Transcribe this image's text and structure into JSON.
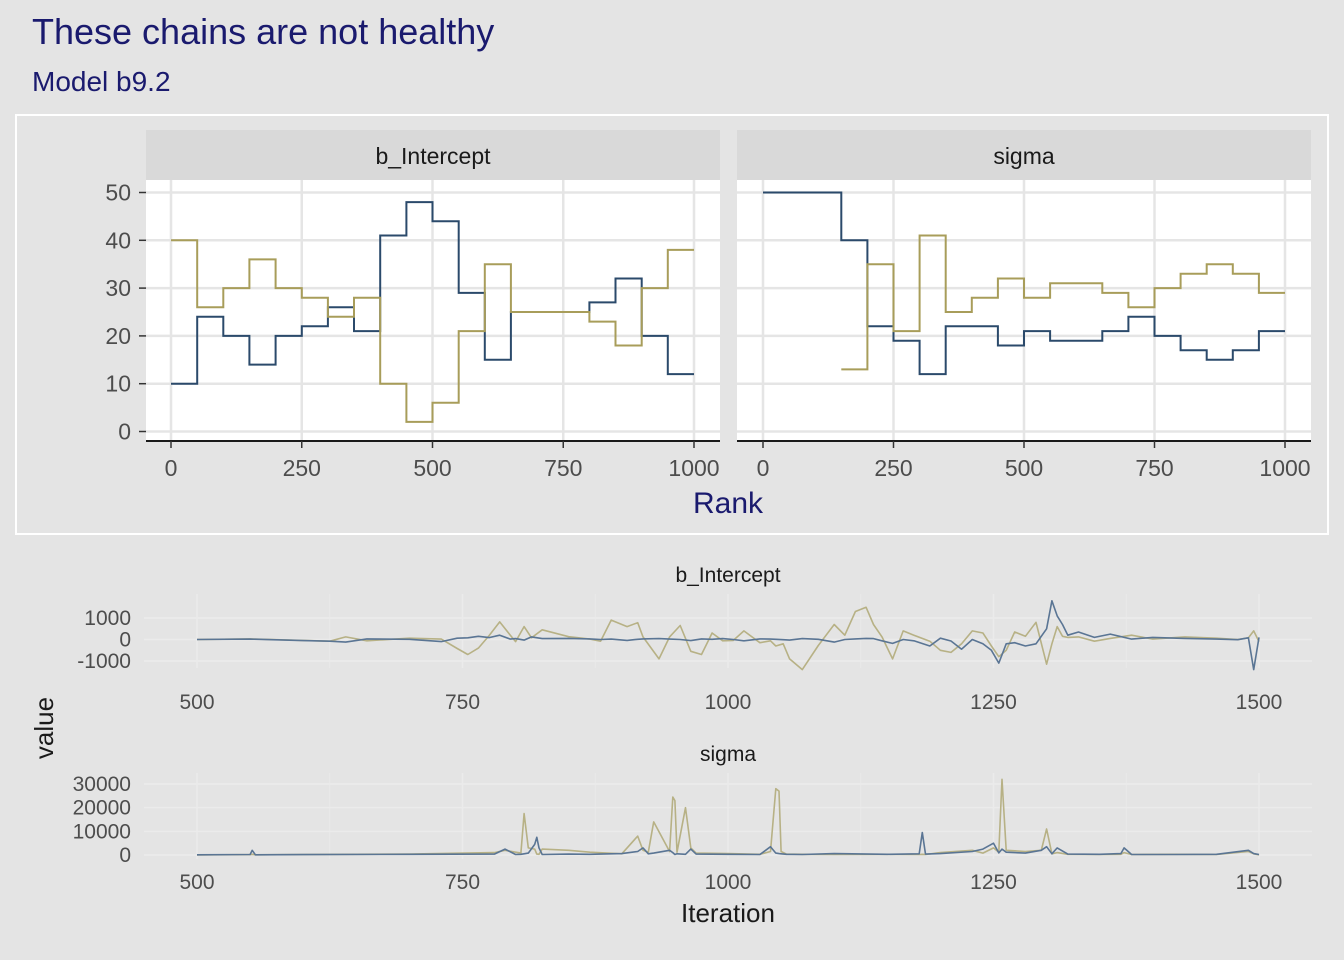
{
  "title": "These chains are not healthy",
  "subtitle": "Model b9.2",
  "colors": {
    "background": "#e4e4e4",
    "panel": "#ffffff",
    "strip": "#d9d9d9",
    "grid": "#e5e5e5",
    "title": "#1a1a6e",
    "chain1": "#2b4a6b",
    "chain2": "#a89d5a",
    "chain1_trace": "#5a7594",
    "chain2_trace": "#b7b185"
  },
  "chart_data": [
    {
      "type": "line",
      "subtype": "rank-step",
      "xlabel": "Rank",
      "ylabel": "",
      "xlim": [
        0,
        1000
      ],
      "ylim": [
        0,
        50
      ],
      "xticks": [
        "0",
        "250",
        "500",
        "750",
        "1000"
      ],
      "yticks": [
        "0",
        "10",
        "20",
        "30",
        "40",
        "50"
      ],
      "panels": [
        {
          "strip": "b_Intercept",
          "bin_edges": [
            0,
            50,
            100,
            150,
            200,
            250,
            300,
            350,
            400,
            450,
            500,
            550,
            600,
            650,
            700,
            750,
            800,
            850,
            900,
            950,
            1000
          ],
          "series": [
            {
              "values": [
                10,
                24,
                20,
                14,
                20,
                22,
                26,
                21,
                41,
                48,
                44,
                29,
                15,
                25,
                25,
                25,
                27,
                32,
                20,
                12
              ]
            },
            {
              "values": [
                40,
                26,
                30,
                36,
                30,
                28,
                24,
                28,
                10,
                2,
                6,
                21,
                35,
                25,
                25,
                25,
                23,
                18,
                30,
                38
              ]
            }
          ]
        },
        {
          "strip": "sigma",
          "bin_edges": [
            0,
            50,
            100,
            150,
            200,
            250,
            300,
            350,
            400,
            450,
            500,
            550,
            600,
            650,
            700,
            750,
            800,
            850,
            900,
            950,
            1000
          ],
          "series": [
            {
              "values": [
                50,
                50,
                50,
                40,
                22,
                19,
                12,
                22,
                22,
                18,
                21,
                19,
                19,
                21,
                24,
                20,
                17,
                15,
                17,
                21
              ]
            },
            {
              "values": [
                null,
                null,
                null,
                13,
                35,
                21,
                41,
                25,
                28,
                32,
                28,
                31,
                31,
                29,
                26,
                30,
                33,
                35,
                33,
                29
              ]
            }
          ]
        }
      ]
    },
    {
      "type": "line",
      "subtype": "trace",
      "xlabel": "Iteration",
      "ylabel": "value",
      "xticks": [
        "500",
        "750",
        "1000",
        "1250",
        "1500"
      ],
      "panels": [
        {
          "strip": "b_Intercept",
          "yticks": [
            "-1000",
            "0",
            "1000"
          ],
          "ylim": [
            -1600,
            1900
          ],
          "x": [
            500,
            550,
            600,
            625,
            640,
            660,
            700,
            730,
            745,
            755,
            765,
            775,
            785,
            795,
            800,
            808,
            815,
            825,
            850,
            870,
            880,
            890,
            905,
            915,
            920,
            935,
            945,
            955,
            965,
            975,
            985,
            995,
            1005,
            1015,
            1030,
            1040,
            1045,
            1052,
            1058,
            1070,
            1085,
            1100,
            1110,
            1120,
            1130,
            1137,
            1145,
            1155,
            1165,
            1175,
            1190,
            1200,
            1210,
            1220,
            1230,
            1240,
            1248,
            1255,
            1262,
            1270,
            1280,
            1290,
            1300,
            1305,
            1310,
            1315,
            1320,
            1330,
            1345,
            1360,
            1380,
            1400,
            1430,
            1460,
            1480,
            1490,
            1495,
            1500
          ],
          "series": [
            {
              "values": [
                0,
                20,
                -50,
                -80,
                -120,
                30,
                10,
                -100,
                60,
                80,
                150,
                90,
                200,
                20,
                40,
                -30,
                120,
                40,
                50,
                30,
                0,
                20,
                -40,
                10,
                30,
                40,
                20,
                0,
                -50,
                30,
                10,
                40,
                0,
                -60,
                30,
                20,
                10,
                -10,
                -30,
                40,
                10,
                -120,
                0,
                30,
                50,
                40,
                -60,
                -180,
                0,
                -60,
                -300,
                60,
                -70,
                -450,
                0,
                -200,
                -500,
                -1100,
                -200,
                -150,
                -300,
                -200,
                500,
                1800,
                1100,
                700,
                200,
                350,
                100,
                250,
                20,
                100,
                50,
                20,
                -10,
                80,
                -1400,
                100
              ]
            },
            {
              "values": [
                0,
                30,
                -40,
                -80,
                120,
                -60,
                60,
                20,
                -420,
                -700,
                -400,
                180,
                820,
                200,
                -100,
                600,
                80,
                450,
                130,
                20,
                -80,
                900,
                600,
                780,
                120,
                -900,
                120,
                650,
                -550,
                -700,
                300,
                -60,
                -40,
                400,
                -150,
                -60,
                -300,
                -200,
                -900,
                -1400,
                -280,
                700,
                200,
                1300,
                1500,
                700,
                120,
                -900,
                400,
                200,
                -80,
                -500,
                -600,
                -200,
                400,
                300,
                -300,
                -800,
                -500,
                350,
                150,
                800,
                -1150,
                -200,
                600,
                150,
                100,
                120,
                -80,
                50,
                200,
                20,
                120,
                60,
                0,
                80,
                400,
                -100
              ]
            }
          ]
        },
        {
          "strip": "sigma",
          "yticks": [
            "0",
            "10000",
            "20000",
            "30000"
          ],
          "ylim": [
            -1500,
            33000
          ],
          "x": [
            500,
            550,
            552,
            555,
            600,
            700,
            780,
            790,
            800,
            805,
            808,
            812,
            818,
            820,
            822,
            825,
            850,
            870,
            900,
            915,
            920,
            925,
            930,
            945,
            948,
            950,
            952,
            960,
            965,
            970,
            1000,
            1030,
            1040,
            1045,
            1048,
            1050,
            1055,
            1070,
            1100,
            1150,
            1180,
            1183,
            1186,
            1200,
            1230,
            1240,
            1250,
            1255,
            1258,
            1262,
            1280,
            1295,
            1300,
            1305,
            1310,
            1320,
            1350,
            1370,
            1373,
            1380,
            1420,
            1460,
            1490,
            1495,
            1500
          ],
          "series": [
            {
              "values": [
                100,
                200,
                2000,
                100,
                150,
                300,
                400,
                2500,
                200,
                300,
                500,
                800,
                4500,
                7500,
                3000,
                200,
                400,
                300,
                600,
                1500,
                3000,
                500,
                800,
                2000,
                1000,
                200,
                500,
                300,
                2500,
                400,
                300,
                200,
                3500,
                800,
                600,
                500,
                300,
                200,
                600,
                300,
                500,
                9500,
                400,
                600,
                1500,
                2500,
                5000,
                900,
                2500,
                1200,
                800,
                2000,
                3500,
                500,
                3000,
                400,
                300,
                600,
                3000,
                200,
                200,
                300,
                2000,
                600,
                200
              ]
            },
            {
              "values": [
                0,
                150,
                300,
                100,
                200,
                400,
                1000,
                2000,
                1200,
                800,
                17500,
                3000,
                2500,
                400,
                300,
                2500,
                2000,
                1200,
                500,
                8000,
                2000,
                1200,
                14000,
                1500,
                24500,
                23000,
                1200,
                20000,
                3000,
                800,
                600,
                300,
                1500,
                28000,
                27000,
                1500,
                400,
                300,
                200,
                300,
                200,
                300,
                200,
                1000,
                2000,
                800,
                3000,
                1200,
                32000,
                2000,
                1500,
                2000,
                11000,
                500,
                1000,
                300,
                200,
                300,
                1000,
                200,
                300,
                200,
                1500,
                500,
                100
              ]
            }
          ]
        }
      ]
    }
  ]
}
